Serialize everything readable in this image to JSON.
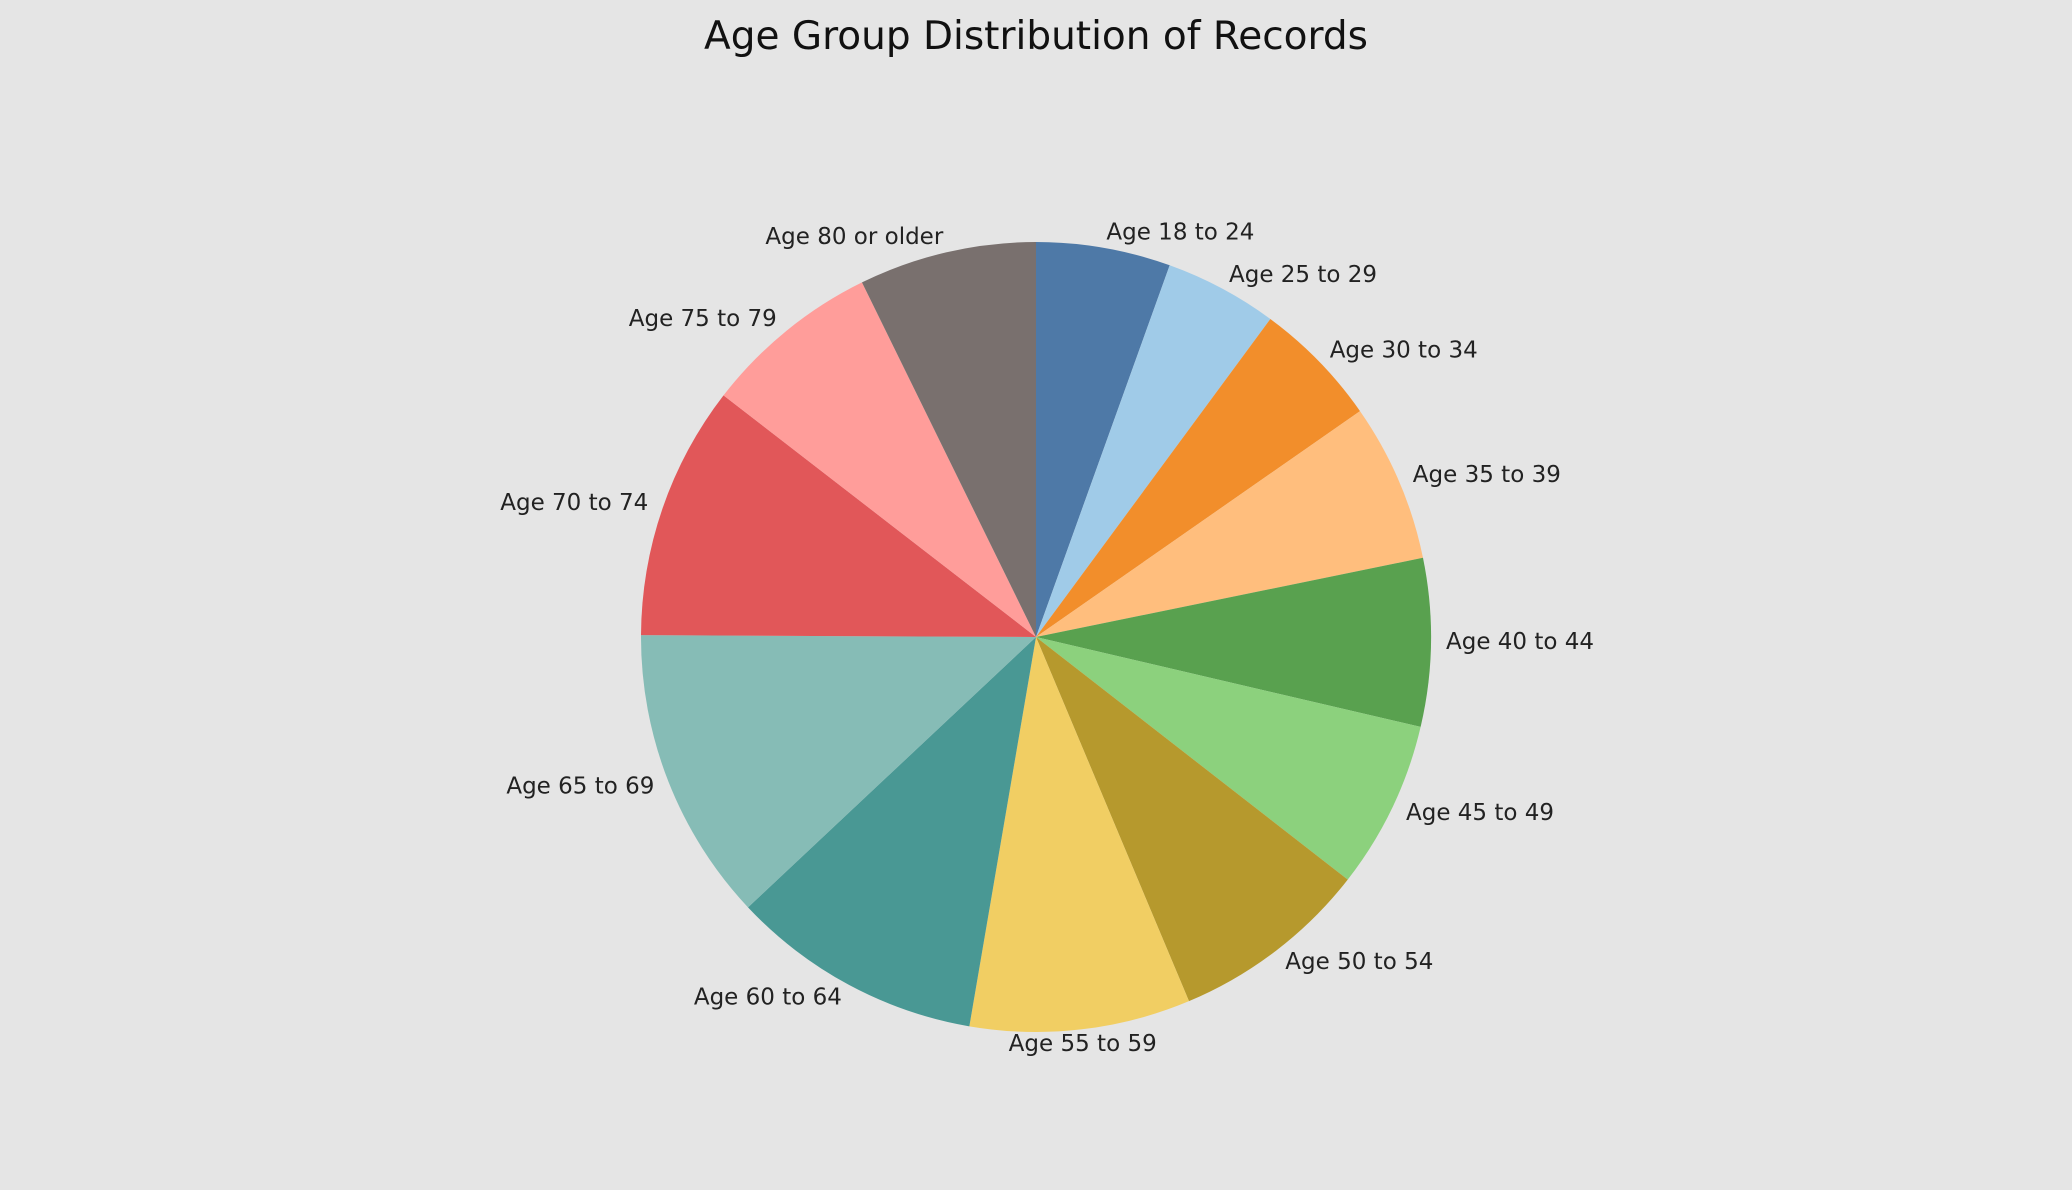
{
  "chart_data": {
    "type": "pie",
    "title": "Age Group Distribution of Records",
    "start": "top",
    "direction": "clockwise",
    "slices": [
      {
        "label": "Age 18 to 24",
        "value": 5.6,
        "color": "#4e79a7"
      },
      {
        "label": "Age 25 to 29",
        "value": 4.7,
        "color": "#a0cbe8"
      },
      {
        "label": "Age 30 to 34",
        "value": 5.3,
        "color": "#f28e2b"
      },
      {
        "label": "Age 35 to 39",
        "value": 6.6,
        "color": "#ffbe7d"
      },
      {
        "label": "Age 40 to 44",
        "value": 7.0,
        "color": "#59a14f"
      },
      {
        "label": "Age 45 to 49",
        "value": 7.0,
        "color": "#8cd17d"
      },
      {
        "label": "Age 50 to 54",
        "value": 8.3,
        "color": "#b6992d"
      },
      {
        "label": "Age 55 to 59",
        "value": 9.2,
        "color": "#f1ce63"
      },
      {
        "label": "Age 60 to 64",
        "value": 10.5,
        "color": "#499894"
      },
      {
        "label": "Age 65 to 69",
        "value": 12.3,
        "color": "#86bcb6"
      },
      {
        "label": "Age 70 to 74",
        "value": 10.6,
        "color": "#e15759"
      },
      {
        "label": "Age 75 to 79",
        "value": 7.4,
        "color": "#ff9d9a"
      },
      {
        "label": "Age 80 or older",
        "value": 7.4,
        "color": "#79706e"
      }
    ]
  }
}
